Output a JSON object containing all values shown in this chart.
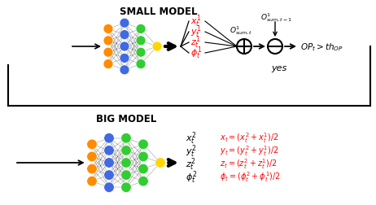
{
  "bg_color": "#ffffff",
  "title_small": "SMALL MODEL",
  "title_big": "BIG MODEL",
  "nn_small_layers": [
    {
      "n": 4,
      "color": "#FF8C00"
    },
    {
      "n": 5,
      "color": "#4169E1"
    },
    {
      "n": 4,
      "color": "#32CD32"
    },
    {
      "n": 1,
      "color": "#FFD700"
    }
  ],
  "nn_big_layers": [
    {
      "n": 4,
      "color": "#FF8C00"
    },
    {
      "n": 5,
      "color": "#4169E1"
    },
    {
      "n": 5,
      "color": "#32CD32"
    },
    {
      "n": 4,
      "color": "#32CD32"
    },
    {
      "n": 1,
      "color": "#FFD700"
    }
  ],
  "small_out_labels": [
    "$x^1_t$",
    "$y^1_t$",
    "$z^1_t$",
    "$\\phi^1_t$"
  ],
  "big_out_labels": [
    "$x^2_t$",
    "$y^2_t$",
    "$z^2_t$",
    "$\\phi^2_t$"
  ],
  "red_formulas": [
    "$x_t = (x^2_t + x^1_t) / 2$",
    "$y_t = (y^2_t + y^1_t) / 2$",
    "$z_t = (z^2_t + z^1_t) / 2$",
    "$\\phi_t = (\\phi^2_t + \\phi^1_t) / 2$"
  ],
  "o1_sum_t": "$O^1_{sum,t}$",
  "o1_sum_t1": "$O^1_{sum,t-1}$",
  "op_label": "$OP_t > th_{OP}$",
  "yes_label": "yes"
}
